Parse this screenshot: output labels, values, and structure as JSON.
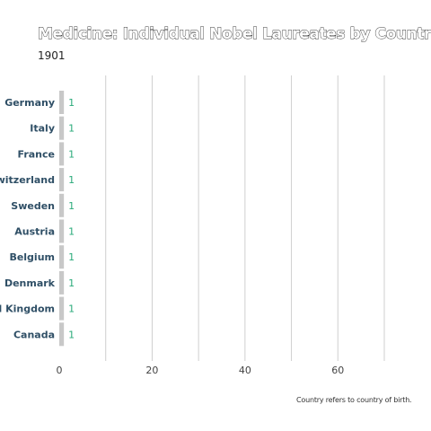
{
  "chart_data": {
    "type": "bar",
    "orientation": "horizontal",
    "title": "Medicine: Individual Nobel Laureates by Country",
    "subtitle": "1901",
    "footnote": "Country refers to country of birth.",
    "categories": [
      "Germany",
      "Italy",
      "France",
      "Switzerland",
      "Sweden",
      "Austria",
      "Belgium",
      "Denmark",
      "United Kingdom",
      "Canada"
    ],
    "values": [
      1,
      1,
      1,
      1,
      1,
      1,
      1,
      1,
      1,
      1
    ],
    "xlim": [
      0,
      70
    ],
    "xticks": [
      0,
      20,
      40,
      60
    ],
    "grid": true,
    "bar_color": "#c8c8c8",
    "value_label_color": "#2aaa7a",
    "category_label_color": "#2f4f66"
  }
}
